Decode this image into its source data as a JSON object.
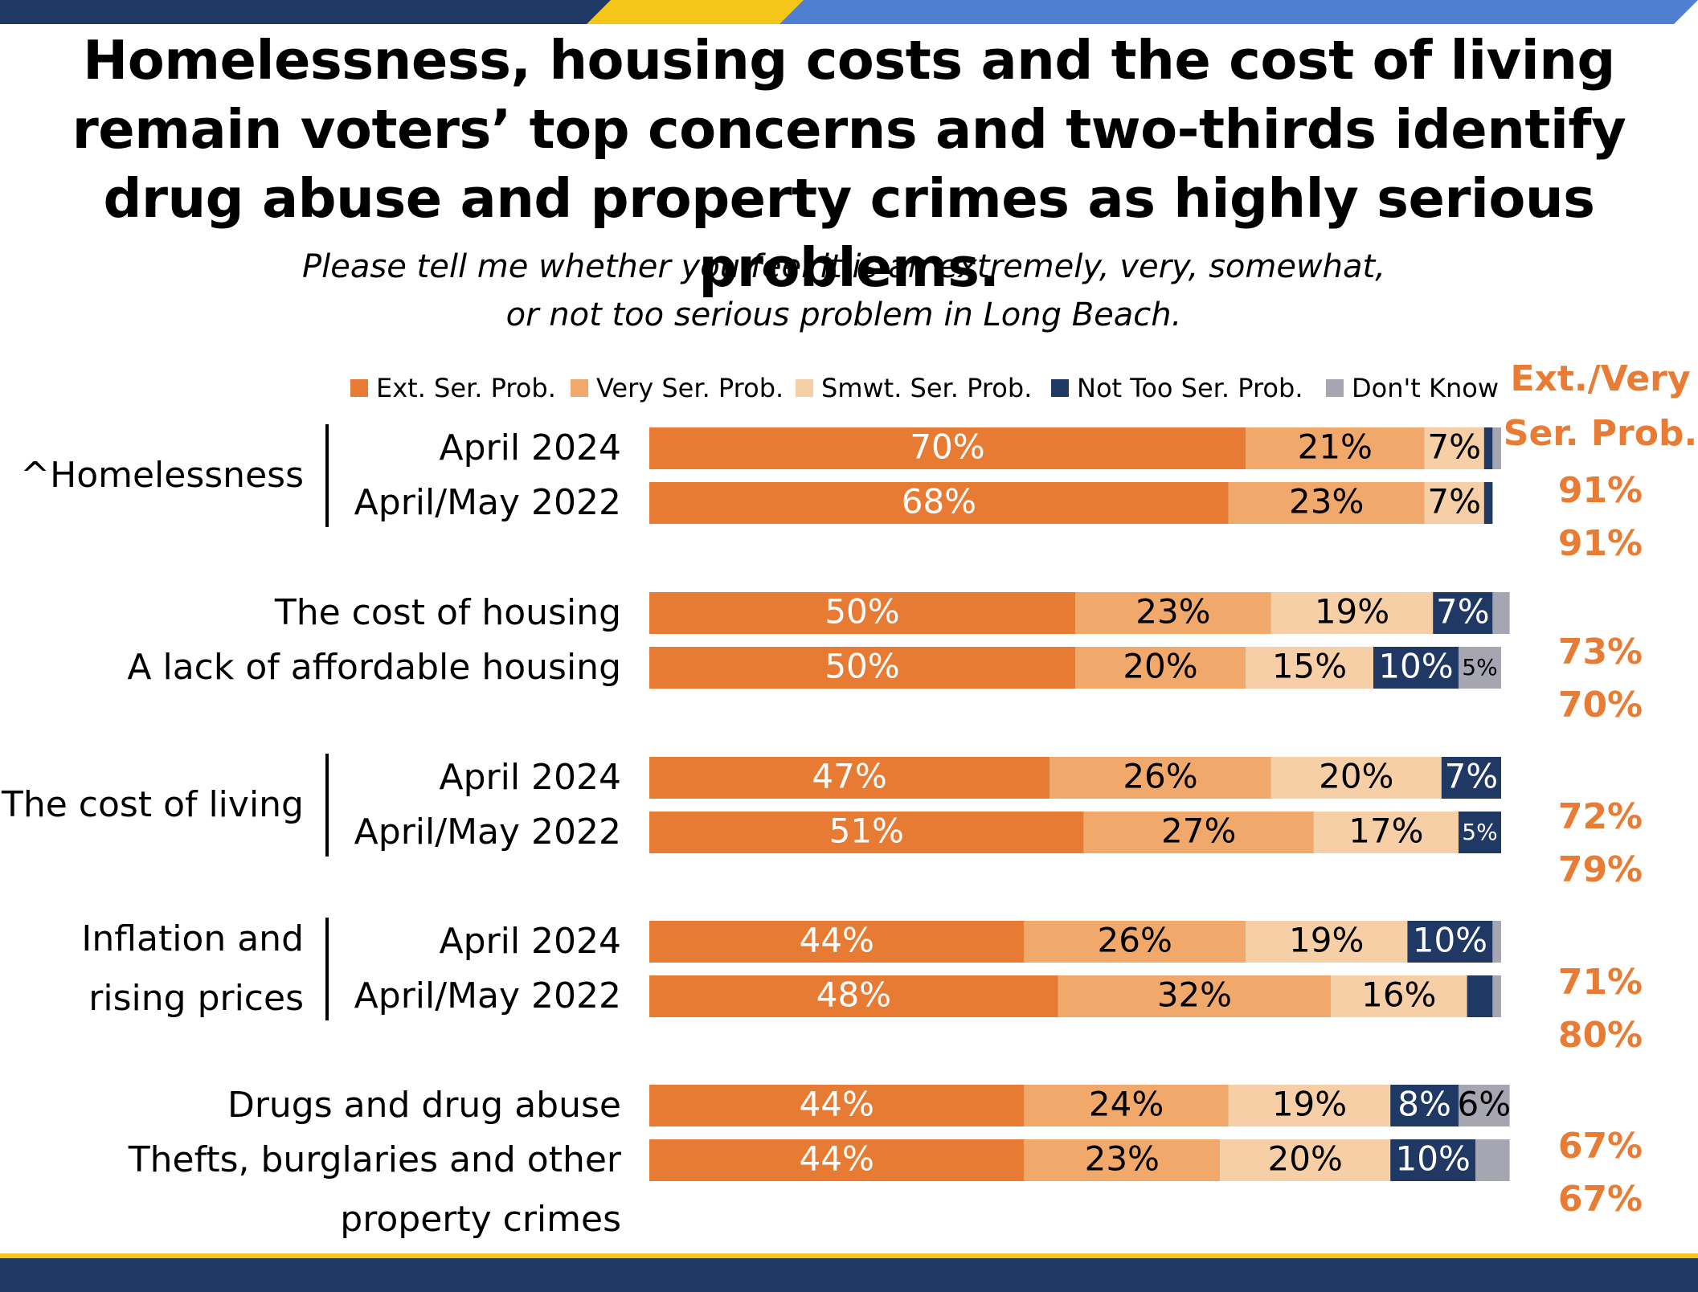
{
  "title": "Homelessness, housing costs and the cost of living remain voters’ top concerns and two-thirds identify drug abuse and property crimes as highly serious problems.",
  "subtitle_line1": "Please tell me whether you feel it is an extremely, very, somewhat,",
  "subtitle_line2": "or not too serious problem in Long Beach.",
  "summary_header_line1": "Ext./Very",
  "summary_header_line2": "Ser. Prob.",
  "colors": {
    "ext": "#e87b33",
    "very": "#f0a96b",
    "smwt": "#f6cfa6",
    "not_too": "#1f3864",
    "dont_know": "#a6a6b3",
    "accent_orange": "#e87c34",
    "band_navy": "#1f3864",
    "band_gold": "#f5c518",
    "band_blue": "#4f7fd0"
  },
  "chart_data": {
    "type": "bar",
    "orientation": "horizontal",
    "stacked": true,
    "xlim": [
      0,
      100
    ],
    "legend_position": "top",
    "series_names": [
      "Ext. Ser. Prob.",
      "Very Ser. Prob.",
      "Smwt. Ser. Prob.",
      "Not Too Ser. Prob.",
      "Don't Know"
    ],
    "groups": [
      {
        "category_lines": [
          "^Homelessness"
        ],
        "bracket": true,
        "rows": [
          {
            "label": "April 2024",
            "values": [
              70,
              21,
              7,
              1,
              1
            ],
            "labels": [
              "70%",
              "21%",
              "7%",
              "",
              ""
            ],
            "ext_very": "91%"
          },
          {
            "label": "April/May 2022",
            "values": [
              68,
              23,
              7,
              1,
              0
            ],
            "labels": [
              "68%",
              "23%",
              "7%",
              "",
              ""
            ],
            "ext_very": "91%"
          }
        ]
      },
      {
        "category_lines": [],
        "bracket": false,
        "rows": [
          {
            "label_lines": [
              "The cost of housing"
            ],
            "values": [
              50,
              23,
              19,
              7,
              2
            ],
            "labels": [
              "50%",
              "23%",
              "19%",
              "7%",
              ""
            ],
            "ext_very": "73%"
          },
          {
            "label_lines": [
              "A lack of affordable housing"
            ],
            "values": [
              50,
              20,
              15,
              10,
              5
            ],
            "labels": [
              "50%",
              "20%",
              "15%",
              "10%",
              "5%"
            ],
            "ext_very": "70%"
          }
        ]
      },
      {
        "category_lines": [
          "The cost of living"
        ],
        "bracket": true,
        "rows": [
          {
            "label": "April 2024",
            "values": [
              47,
              26,
              20,
              7,
              0
            ],
            "labels": [
              "47%",
              "26%",
              "20%",
              "7%",
              ""
            ],
            "ext_very": "72%"
          },
          {
            "label": "April/May 2022",
            "values": [
              51,
              27,
              17,
              5,
              0
            ],
            "labels": [
              "51%",
              "27%",
              "17%",
              "5%",
              ""
            ],
            "ext_very": "79%"
          }
        ]
      },
      {
        "category_lines": [
          "Inflation and",
          "rising prices"
        ],
        "bracket": true,
        "rows": [
          {
            "label": "April 2024",
            "values": [
              44,
              26,
              19,
              10,
              1
            ],
            "labels": [
              "44%",
              "26%",
              "19%",
              "10%",
              ""
            ],
            "ext_very": "71%"
          },
          {
            "label": "April/May 2022",
            "values": [
              48,
              32,
              16,
              3,
              1
            ],
            "labels": [
              "48%",
              "32%",
              "16%",
              "",
              ""
            ],
            "ext_very": "80%"
          }
        ]
      },
      {
        "category_lines": [],
        "bracket": false,
        "rows": [
          {
            "label_lines": [
              "Drugs and drug abuse"
            ],
            "values": [
              44,
              24,
              19,
              8,
              6
            ],
            "labels": [
              "44%",
              "24%",
              "19%",
              "8%",
              "6%"
            ],
            "ext_very": "67%"
          },
          {
            "label_lines": [
              "Thefts, burglaries and other",
              "property crimes"
            ],
            "values": [
              44,
              23,
              20,
              10,
              4
            ],
            "labels": [
              "44%",
              "23%",
              "20%",
              "10%",
              ""
            ],
            "ext_very": "67%"
          }
        ]
      }
    ]
  }
}
